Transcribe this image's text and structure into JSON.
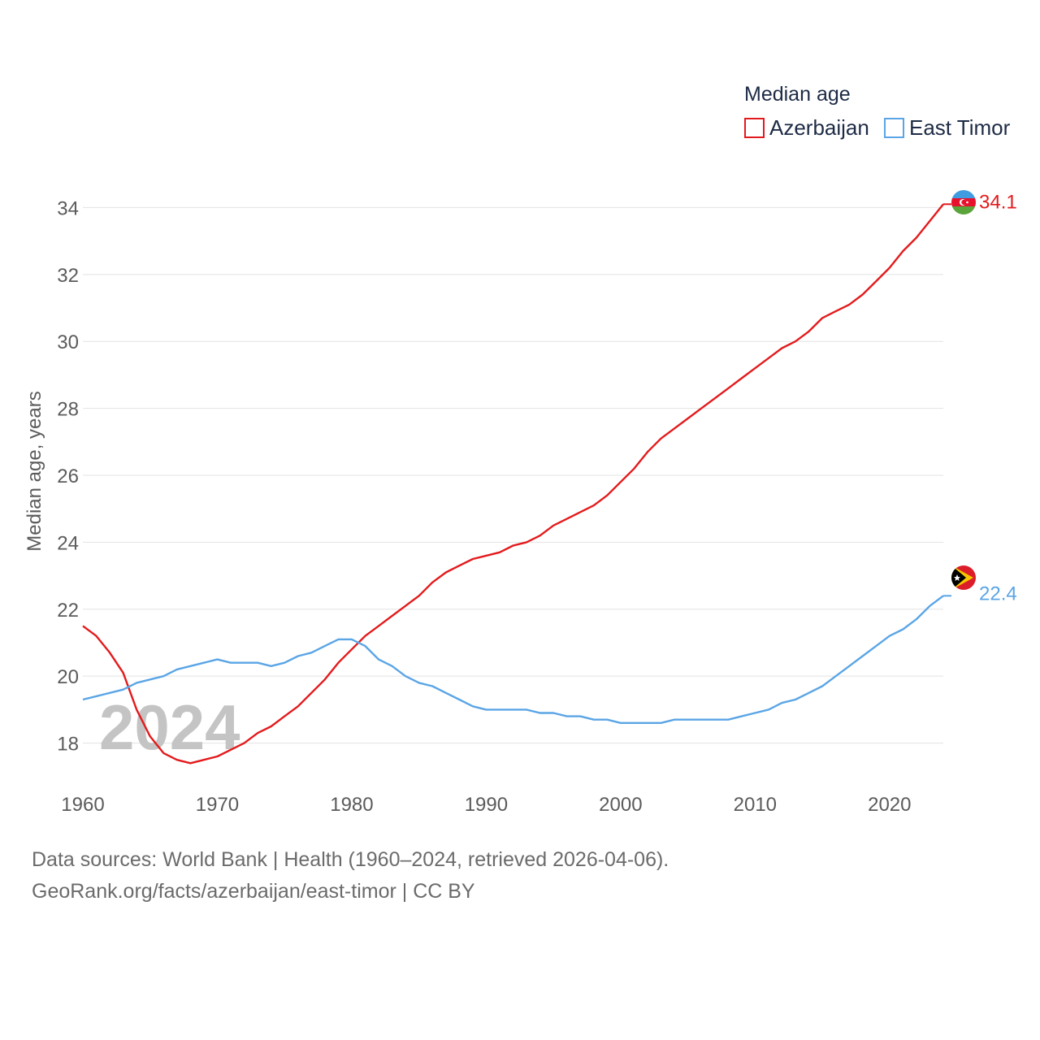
{
  "chart_data": {
    "type": "line",
    "legend_title": "Median age",
    "ylabel": "Median age, years",
    "year_watermark": "2024",
    "xlim": [
      1960,
      2024
    ],
    "ylim": [
      16.8,
      35.2
    ],
    "x_ticks": [
      1960,
      1970,
      1980,
      1990,
      2000,
      2010,
      2020
    ],
    "x_tick_labels": [
      "1960",
      "1970",
      "1980",
      "1990",
      "2000",
      "2010",
      "2020"
    ],
    "y_ticks": [
      18,
      20,
      22,
      24,
      26,
      28,
      30,
      32,
      34
    ],
    "y_tick_labels": [
      "18",
      "20",
      "22",
      "24",
      "26",
      "28",
      "30",
      "32",
      "34"
    ],
    "x": [
      1960,
      1961,
      1962,
      1963,
      1964,
      1965,
      1966,
      1967,
      1968,
      1969,
      1970,
      1971,
      1972,
      1973,
      1974,
      1975,
      1976,
      1977,
      1978,
      1979,
      1980,
      1981,
      1982,
      1983,
      1984,
      1985,
      1986,
      1987,
      1988,
      1989,
      1990,
      1991,
      1992,
      1993,
      1994,
      1995,
      1996,
      1997,
      1998,
      1999,
      2000,
      2001,
      2002,
      2003,
      2004,
      2005,
      2006,
      2007,
      2008,
      2009,
      2010,
      2011,
      2012,
      2013,
      2014,
      2015,
      2016,
      2017,
      2018,
      2019,
      2020,
      2021,
      2022,
      2023,
      2024
    ],
    "series": [
      {
        "name": "Azerbaijan",
        "color": "#e31a1c",
        "end_label": "34.1",
        "values": [
          21.5,
          21.2,
          20.7,
          20.1,
          19.0,
          18.2,
          17.7,
          17.5,
          17.4,
          17.5,
          17.6,
          17.8,
          18.0,
          18.3,
          18.5,
          18.8,
          19.1,
          19.5,
          19.9,
          20.4,
          20.8,
          21.2,
          21.5,
          21.8,
          22.1,
          22.4,
          22.8,
          23.1,
          23.3,
          23.5,
          23.6,
          23.7,
          23.9,
          24.0,
          24.2,
          24.5,
          24.7,
          24.9,
          25.1,
          25.4,
          25.8,
          26.2,
          26.7,
          27.1,
          27.4,
          27.7,
          28.0,
          28.3,
          28.6,
          28.9,
          29.2,
          29.5,
          29.8,
          30.0,
          30.3,
          30.7,
          30.9,
          31.1,
          31.4,
          31.8,
          32.2,
          32.7,
          33.1,
          33.6,
          34.1
        ]
      },
      {
        "name": "East Timor",
        "color": "#5aa5e6",
        "end_label": "22.4",
        "values": [
          19.3,
          19.4,
          19.5,
          19.6,
          19.8,
          19.9,
          20.0,
          20.2,
          20.3,
          20.4,
          20.5,
          20.4,
          20.4,
          20.4,
          20.3,
          20.4,
          20.6,
          20.7,
          20.9,
          21.1,
          21.1,
          20.9,
          20.5,
          20.3,
          20.0,
          19.8,
          19.7,
          19.5,
          19.3,
          19.1,
          19.0,
          19.0,
          19.0,
          19.0,
          18.9,
          18.9,
          18.8,
          18.8,
          18.7,
          18.7,
          18.6,
          18.6,
          18.6,
          18.6,
          18.7,
          18.7,
          18.7,
          18.7,
          18.7,
          18.8,
          18.9,
          19.0,
          19.2,
          19.3,
          19.5,
          19.7,
          20.0,
          20.3,
          20.6,
          20.9,
          21.2,
          21.4,
          21.7,
          22.1,
          22.4
        ]
      }
    ]
  },
  "footer": {
    "line1": "Data sources: World Bank | Health (1960–2024, retrieved 2026-04-06).",
    "line2": "GeoRank.org/facts/azerbaijan/east-timor | CC BY"
  }
}
